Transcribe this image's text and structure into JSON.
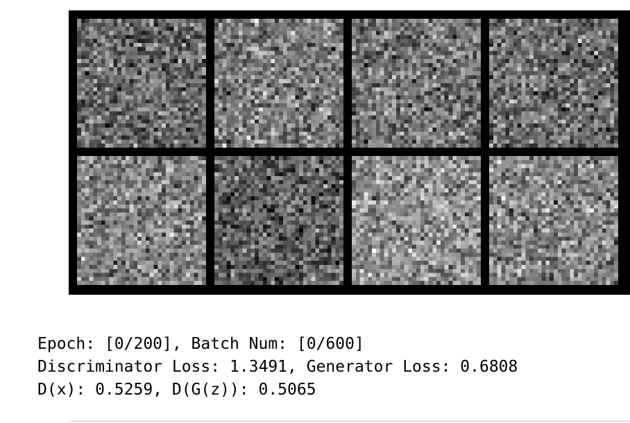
{
  "figure": {
    "description_hidden": "",
    "tiles": [
      {
        "name": "generated-sample-1"
      },
      {
        "name": "generated-sample-2"
      },
      {
        "name": "generated-sample-3"
      },
      {
        "name": "generated-sample-4"
      },
      {
        "name": "generated-sample-5"
      },
      {
        "name": "generated-sample-6"
      },
      {
        "name": "generated-sample-7"
      },
      {
        "name": "generated-sample-8"
      }
    ],
    "colors": {
      "grid_background": "#000000",
      "page_background": "#ffffff"
    }
  },
  "log": {
    "line1": "Epoch: [0/200], Batch Num: [0/600]",
    "line2": "Discriminator Loss: 1.3491, Generator Loss: 0.6808",
    "line3": "D(x): 0.5259, D(G(z)): 0.5065"
  }
}
